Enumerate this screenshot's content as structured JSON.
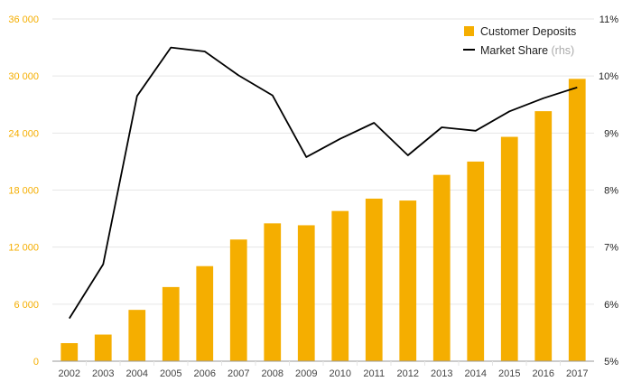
{
  "chart_data": {
    "type": "bar+line",
    "categories": [
      "2002",
      "2003",
      "2004",
      "2005",
      "2006",
      "2007",
      "2008",
      "2009",
      "2010",
      "2011",
      "2012",
      "2013",
      "2014",
      "2015",
      "2016",
      "2017"
    ],
    "series": [
      {
        "name": "Customer Deposits",
        "type": "bar",
        "axis": "left",
        "values": [
          1900,
          2800,
          5400,
          7800,
          10000,
          12800,
          14500,
          14300,
          15800,
          17100,
          16900,
          19600,
          21000,
          23600,
          26300,
          29700
        ]
      },
      {
        "name": "Market Share",
        "type": "line",
        "axis": "right",
        "values": [
          5.75,
          6.7,
          9.65,
          10.5,
          10.43,
          10.01,
          9.66,
          8.58,
          8.9,
          9.18,
          8.61,
          9.1,
          9.04,
          9.38,
          9.61,
          9.8
        ]
      }
    ],
    "left_axis": {
      "ylim": [
        0,
        36000
      ],
      "ticks": [
        0,
        6000,
        12000,
        18000,
        24000,
        30000,
        36000
      ],
      "tick_labels": [
        "0",
        "6 000",
        "12 000",
        "18 000",
        "24 000",
        "30 000",
        "36 000"
      ]
    },
    "right_axis": {
      "ylim": [
        5,
        11
      ],
      "ticks": [
        5,
        6,
        7,
        8,
        9,
        10,
        11
      ],
      "tick_labels": [
        "5%",
        "6%",
        "7%",
        "8%",
        "9%",
        "10%",
        "11%"
      ]
    },
    "legend": {
      "position": "top-right",
      "items": [
        {
          "label": "Customer Deposits",
          "suffix": ""
        },
        {
          "label": "Market Share",
          "suffix": " (rhs)"
        }
      ]
    },
    "grid": true
  },
  "colors": {
    "bar": "#f5ae00",
    "line": "#000000",
    "left_tick": "#f5ae00",
    "right_tick": "#222222",
    "x_tick": "#444444",
    "grid": "#e6e6e6",
    "axis": "#999999",
    "legend_text": "#222222",
    "legend_suffix": "#aaaaaa"
  }
}
